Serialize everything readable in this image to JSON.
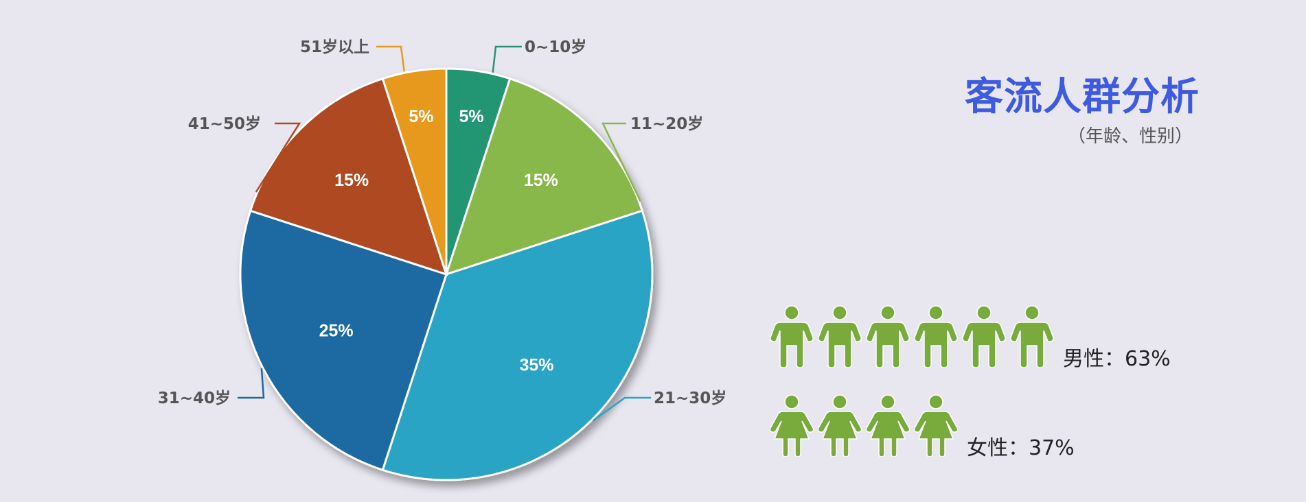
{
  "title": "客流人群分析",
  "subtitle": "（年龄、性别）",
  "chart_data": {
    "type": "pie",
    "slices": [
      {
        "label": "0~10岁",
        "value": 5,
        "display": "5%",
        "color": "#249573"
      },
      {
        "label": "11~20岁",
        "value": 15,
        "display": "15%",
        "color": "#88b848"
      },
      {
        "label": "21~30岁",
        "value": 35,
        "display": "35%",
        "color": "#2aa4c4"
      },
      {
        "label": "31~40岁",
        "value": 25,
        "display": "25%",
        "color": "#1b6aa1"
      },
      {
        "label": "41~50岁",
        "value": 15,
        "display": "15%",
        "color": "#ae4a22"
      },
      {
        "label": "51岁以上",
        "value": 5,
        "display": "5%",
        "color": "#e6991f"
      }
    ]
  },
  "gender": {
    "male": {
      "label": "男性：63%",
      "value": 63,
      "icon_count": 6,
      "icon": "male-person-icon"
    },
    "female": {
      "label": "女性：37%",
      "value": 37,
      "icon_count": 4,
      "icon": "female-person-icon"
    },
    "icon_color": "#78ab3c"
  }
}
